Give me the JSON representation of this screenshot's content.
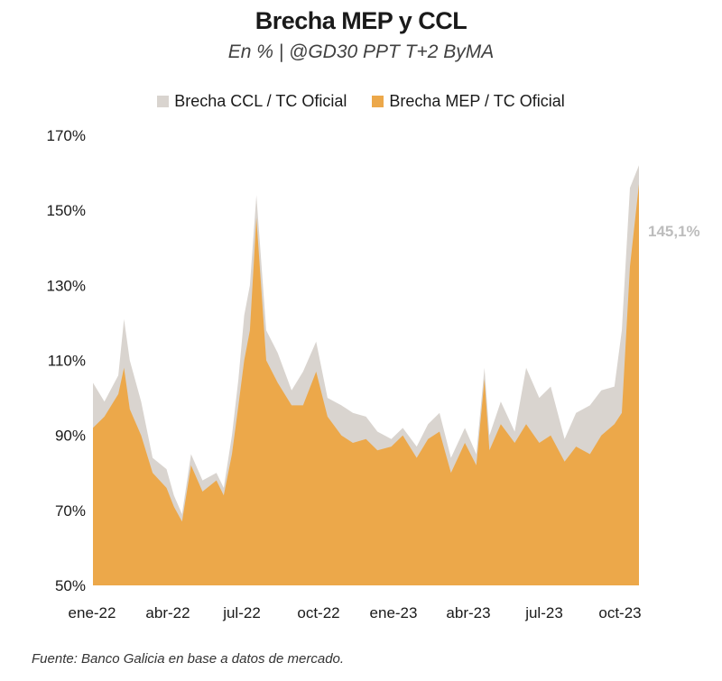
{
  "chart_data": {
    "type": "area",
    "title": "Brecha MEP y CCL",
    "subtitle": "En % | @GD30 PPT T+2 ByMA",
    "source": "Fuente: Banco Galicia en base a datos de mercado.",
    "legend_position": "top-center",
    "grid": false,
    "colors": {
      "ccl": "#d9d4cf",
      "mep": "#eca84a"
    },
    "ylim": [
      50,
      170
    ],
    "yticks": [
      "170%",
      "150%",
      "130%",
      "110%",
      "90%",
      "70%",
      "50%"
    ],
    "ytick_values": [
      170,
      150,
      130,
      110,
      90,
      70,
      50
    ],
    "xticks": [
      "ene-22",
      "abr-22",
      "jul-22",
      "oct-22",
      "ene-23",
      "abr-23",
      "jul-23",
      "oct-23"
    ],
    "annotation": "145,1%",
    "series": [
      {
        "name": "Brecha CCL / TC Oficial",
        "key": "ccl",
        "x": [
          "2022-01-01",
          "2022-01-15",
          "2022-02-01",
          "2022-02-08",
          "2022-02-15",
          "2022-03-01",
          "2022-03-15",
          "2022-04-01",
          "2022-04-10",
          "2022-04-20",
          "2022-05-01",
          "2022-05-15",
          "2022-06-01",
          "2022-06-10",
          "2022-06-20",
          "2022-06-28",
          "2022-07-05",
          "2022-07-12",
          "2022-07-20",
          "2022-08-01",
          "2022-08-15",
          "2022-09-01",
          "2022-09-15",
          "2022-10-01",
          "2022-10-15",
          "2022-11-01",
          "2022-11-15",
          "2022-12-01",
          "2022-12-15",
          "2023-01-01",
          "2023-01-15",
          "2023-02-01",
          "2023-02-15",
          "2023-03-01",
          "2023-03-15",
          "2023-04-01",
          "2023-04-15",
          "2023-04-25",
          "2023-05-01",
          "2023-05-15",
          "2023-06-01",
          "2023-06-15",
          "2023-07-01",
          "2023-07-15",
          "2023-08-01",
          "2023-08-15",
          "2023-09-01",
          "2023-09-15",
          "2023-10-01",
          "2023-10-10",
          "2023-10-20",
          "2023-10-31"
        ],
        "values": [
          104,
          99,
          106,
          121,
          110,
          99,
          84,
          81,
          74,
          69,
          85,
          78,
          80,
          76,
          90,
          105,
          122,
          130,
          154,
          118,
          112,
          102,
          107,
          115,
          100,
          98,
          96,
          95,
          91,
          89,
          92,
          87,
          93,
          96,
          84,
          92,
          85,
          108,
          90,
          99,
          91,
          108,
          100,
          103,
          89,
          96,
          98,
          102,
          103,
          118,
          156,
          162
        ]
      },
      {
        "name": "Brecha MEP / TC Oficial",
        "key": "mep",
        "x": [
          "2022-01-01",
          "2022-01-15",
          "2022-02-01",
          "2022-02-08",
          "2022-02-15",
          "2022-03-01",
          "2022-03-15",
          "2022-04-01",
          "2022-04-10",
          "2022-04-20",
          "2022-05-01",
          "2022-05-15",
          "2022-06-01",
          "2022-06-10",
          "2022-06-20",
          "2022-06-28",
          "2022-07-05",
          "2022-07-12",
          "2022-07-20",
          "2022-08-01",
          "2022-08-15",
          "2022-09-01",
          "2022-09-15",
          "2022-10-01",
          "2022-10-15",
          "2022-11-01",
          "2022-11-15",
          "2022-12-01",
          "2022-12-15",
          "2023-01-01",
          "2023-01-15",
          "2023-02-01",
          "2023-02-15",
          "2023-03-01",
          "2023-03-15",
          "2023-04-01",
          "2023-04-15",
          "2023-04-25",
          "2023-05-01",
          "2023-05-15",
          "2023-06-01",
          "2023-06-15",
          "2023-07-01",
          "2023-07-15",
          "2023-08-01",
          "2023-08-15",
          "2023-09-01",
          "2023-09-15",
          "2023-10-01",
          "2023-10-10",
          "2023-10-20",
          "2023-10-31"
        ],
        "values": [
          92,
          95,
          101,
          108,
          97,
          90,
          80,
          76,
          71,
          67,
          82,
          75,
          78,
          74,
          85,
          98,
          110,
          118,
          148,
          110,
          104,
          98,
          98,
          107,
          95,
          90,
          88,
          89,
          86,
          87,
          90,
          84,
          89,
          91,
          80,
          88,
          82,
          105,
          86,
          93,
          88,
          93,
          88,
          90,
          83,
          87,
          85,
          90,
          93,
          96,
          135,
          157
        ]
      }
    ]
  }
}
